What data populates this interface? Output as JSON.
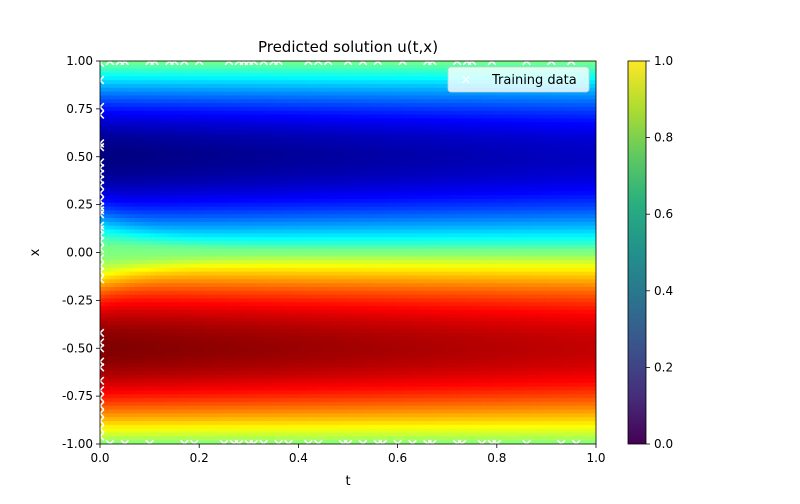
{
  "chart_data": {
    "type": "heatmap",
    "title": "Predicted solution u(t,x)",
    "xlabel": "t",
    "ylabel": "x",
    "xlim": [
      0.0,
      1.0
    ],
    "ylim": [
      -1.0,
      1.0
    ],
    "x_ticks": [
      "0.0",
      "0.2",
      "0.4",
      "0.6",
      "0.8",
      "1.0"
    ],
    "x_tick_values": [
      0.0,
      0.2,
      0.4,
      0.6,
      0.8,
      1.0
    ],
    "y_ticks": [
      "1.00",
      "0.75",
      "0.50",
      "0.25",
      "0.00",
      "-0.25",
      "-0.50",
      "-0.75",
      "-1.00"
    ],
    "y_tick_values": [
      1.0,
      0.75,
      0.5,
      0.25,
      0.0,
      -0.25,
      -0.5,
      -0.75,
      -1.0
    ],
    "heatmap_colormap": "jet",
    "field_description": "u(t,x) shock forming at x=0; u≈1 high (red) below 0, u≈0 low (blue) above 0",
    "colorbar": {
      "colormap": "viridis",
      "range": [
        0.0,
        1.0
      ],
      "ticks": [
        "0.0",
        "0.2",
        "0.4",
        "0.6",
        "0.8",
        "1.0"
      ],
      "tick_values": [
        0.0,
        0.2,
        0.4,
        0.6,
        0.8,
        1.0
      ]
    },
    "legend": {
      "label": "Training data",
      "placement": "top-right"
    },
    "training_points": {
      "marker": "x",
      "color": "#ffffff",
      "initial_t0_x": [
        0.99,
        0.9,
        0.76,
        0.72,
        0.57,
        0.55,
        0.47,
        0.44,
        0.41,
        0.38,
        0.35,
        0.31,
        0.27,
        0.24,
        0.22,
        0.2,
        0.14,
        0.12,
        0.09,
        0.06,
        0.02,
        -0.03,
        -0.07,
        -0.1,
        -0.14,
        -0.42,
        -0.47,
        -0.5,
        -0.57,
        -0.6,
        -0.67,
        -0.72,
        -0.76,
        -0.8,
        -0.84,
        -0.88,
        -0.92,
        -0.96
      ],
      "boundary_x_pos1_t": [
        0.02,
        0.04,
        0.05,
        0.1,
        0.11,
        0.14,
        0.15,
        0.17,
        0.2,
        0.26,
        0.28,
        0.29,
        0.3,
        0.31,
        0.33,
        0.35,
        0.36,
        0.42,
        0.44,
        0.46,
        0.5,
        0.53,
        0.56,
        0.61,
        0.66,
        0.67,
        0.72,
        0.74,
        0.75,
        0.79,
        0.86,
        0.91,
        0.95
      ],
      "boundary_x_neg1_t": [
        0.02,
        0.05,
        0.1,
        0.17,
        0.19,
        0.25,
        0.27,
        0.28,
        0.3,
        0.31,
        0.33,
        0.36,
        0.38,
        0.42,
        0.44,
        0.49,
        0.5,
        0.53,
        0.56,
        0.57,
        0.6,
        0.63,
        0.66,
        0.67,
        0.72,
        0.73,
        0.77,
        0.79,
        0.8,
        0.86,
        0.93,
        0.96
      ]
    }
  }
}
